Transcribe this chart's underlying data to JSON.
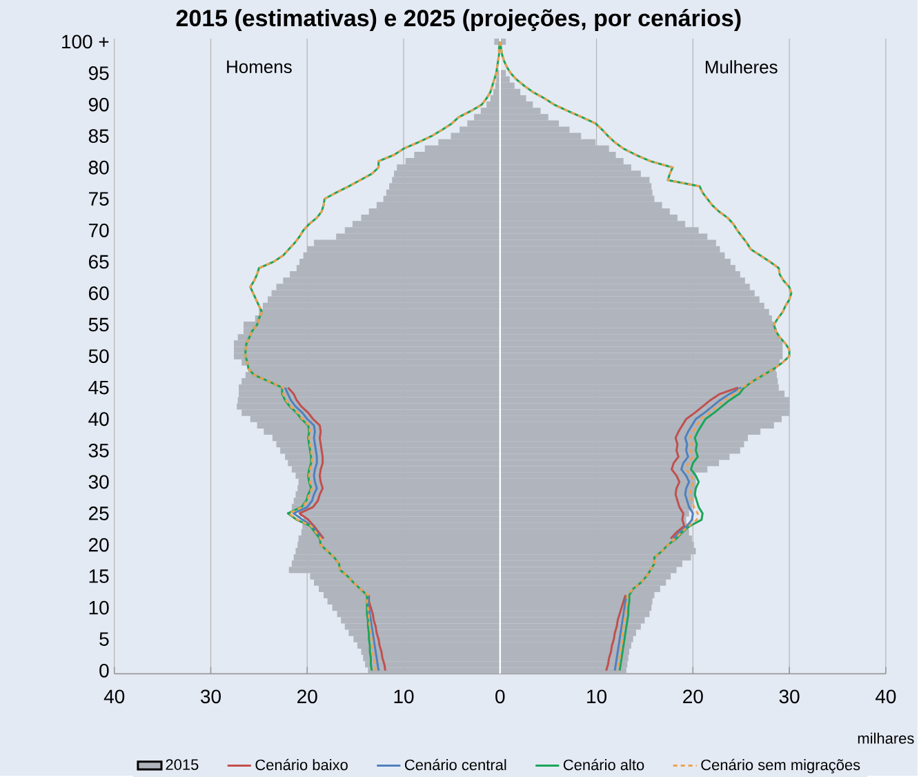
{
  "chart_data": {
    "type": "bar",
    "orientation": "horizontal",
    "stacked": true,
    "title": "2015 (estimativas) e 2025 (projeções, por cenários)",
    "xlabel": "milhares",
    "annotations": [
      "Homens",
      "Mulheres"
    ],
    "categories": [
      "100 +",
      null,
      null,
      null,
      null,
      "95",
      null,
      null,
      null,
      null,
      "90",
      null,
      null,
      null,
      null,
      "85",
      null,
      null,
      null,
      null,
      "80",
      null,
      null,
      null,
      null,
      "75",
      null,
      null,
      null,
      null,
      "70",
      null,
      null,
      null,
      null,
      "65",
      null,
      null,
      null,
      null,
      "60",
      null,
      null,
      null,
      null,
      "55",
      null,
      null,
      null,
      null,
      "50",
      null,
      null,
      null,
      null,
      "45",
      null,
      null,
      null,
      null,
      "40",
      null,
      null,
      null,
      null,
      "35",
      null,
      null,
      null,
      null,
      "30",
      null,
      null,
      null,
      null,
      "25",
      null,
      null,
      null,
      null,
      "20",
      null,
      null,
      null,
      null,
      "15",
      null,
      null,
      null,
      null,
      "10",
      null,
      null,
      null,
      null,
      "5",
      null,
      null,
      null,
      null,
      "0"
    ],
    "xlim": [
      -40,
      40
    ],
    "xticks": [
      {
        "value": -40,
        "label": "40"
      },
      {
        "value": -30,
        "label": "30"
      },
      {
        "value": -20,
        "label": "20"
      },
      {
        "value": -10,
        "label": "10"
      },
      0,
      10,
      20,
      30,
      40
    ],
    "grid": "x",
    "legend": "bottom",
    "ref_lines": [
      {
        "axis": "x",
        "value": 0,
        "color": "#ffffff"
      }
    ],
    "series": [
      {
        "name": "2015",
        "color": "#afb4bd",
        "values": [
          -0.6,
          null,
          null,
          null,
          null,
          -0.3,
          -0.4,
          -0.5,
          -0.7,
          -1.0,
          -1.4,
          -2.0,
          -2.7,
          -3.4,
          -4.2,
          -5.1,
          -6.4,
          -7.8,
          -8.9,
          -9.8,
          -10.7,
          -11.0,
          -11.2,
          -11.5,
          -11.8,
          -12.1,
          -12.8,
          -13.6,
          -14.4,
          -15.3,
          -16.1,
          -17.0,
          -19.3,
          -20.0,
          -20.4,
          -20.8,
          -21.1,
          -21.8,
          -22.5,
          -23.2,
          -23.7,
          -24.1,
          -24.6,
          -25.0,
          -25.4,
          -26.6,
          -26.6,
          -27.2,
          -27.6,
          -27.6,
          -27.6,
          -26.8,
          -26.1,
          -26.4,
          -26.8,
          -27.1,
          -27.1,
          -27.2,
          -27.3,
          -26.8,
          -25.9,
          -25.2,
          -24.5,
          -23.6,
          -23.2,
          -22.8,
          -22.3,
          -22.0,
          -21.6,
          -21.2,
          -20.9,
          -21.0,
          -21.2,
          -21.4,
          -21.6,
          -20.8,
          -20.4,
          -20.5,
          -20.6,
          -20.9,
          -21.0,
          -21.2,
          -21.4,
          -21.6,
          -21.9,
          -19.7,
          -19.3,
          -18.8,
          -18.3,
          -17.9,
          -17.4,
          -16.9,
          -16.5,
          -16.1,
          -15.7,
          -15.2,
          -14.8,
          -14.4,
          -14.2,
          -14.0,
          -13.7
        ]
      },
      {
        "color": "#afb4bd",
        "values": [
          0.6,
          null,
          null,
          null,
          null,
          0.6,
          1.0,
          1.5,
          2.1,
          2.7,
          3.4,
          4.2,
          5.0,
          6.1,
          7.2,
          8.4,
          9.9,
          11.3,
          12.0,
          12.8,
          13.6,
          14.6,
          15.5,
          15.7,
          15.8,
          16.0,
          16.8,
          17.6,
          18.4,
          19.2,
          20.6,
          21.5,
          22.4,
          22.8,
          23.3,
          23.9,
          24.4,
          24.9,
          25.4,
          25.9,
          26.4,
          26.9,
          27.4,
          27.9,
          28.2,
          28.4,
          28.7,
          29.0,
          29.3,
          29.3,
          29.3,
          29.0,
          28.6,
          28.7,
          28.8,
          28.9,
          29.5,
          30.0,
          30.0,
          30.0,
          29.2,
          28.4,
          27.0,
          25.7,
          25.3,
          24.9,
          23.8,
          22.7,
          21.5,
          20.3,
          20.3,
          20.3,
          20.2,
          20.1,
          19.9,
          19.6,
          19.3,
          19.4,
          19.6,
          19.9,
          20.1,
          20.3,
          19.8,
          18.9,
          18.3,
          17.7,
          17.2,
          16.6,
          16.0,
          15.8,
          15.7,
          15.5,
          15.0,
          14.6,
          14.1,
          13.8,
          13.6,
          13.4,
          13.3,
          13.2,
          13.1
        ]
      },
      {
        "name": "Cenário baixo",
        "type": "line",
        "color": "#c0504d",
        "values": [
          null,
          null,
          null,
          null,
          null,
          null,
          null,
          null,
          null,
          null,
          null,
          null,
          null,
          null,
          null,
          null,
          null,
          null,
          null,
          null,
          null,
          null,
          null,
          null,
          null,
          null,
          null,
          null,
          null,
          null,
          null,
          null,
          null,
          null,
          null,
          null,
          null,
          null,
          null,
          null,
          null,
          null,
          null,
          null,
          null,
          null,
          null,
          null,
          null,
          null,
          null,
          null,
          null,
          null,
          null,
          -22.0,
          -21.4,
          -21.1,
          -20.6,
          -19.9,
          -19.4,
          -18.7,
          -18.6,
          -18.7,
          -18.6,
          -18.5,
          -18.4,
          -18.4,
          -18.6,
          -18.7,
          -18.6,
          -18.4,
          -18.7,
          -18.9,
          -19.4,
          -20.8,
          -19.9,
          -19.3,
          -18.8,
          -18.3,
          null,
          null,
          null,
          null,
          null,
          null,
          null,
          null,
          -13.6,
          -13.6,
          -13.4,
          -13.2,
          -13.1,
          -12.9,
          -12.8,
          -12.6,
          -12.5,
          -12.3,
          -12.2,
          -12.0,
          -11.9
        ]
      },
      {
        "name": "Cenário central",
        "type": "line",
        "color": "#4f81bd",
        "values": [
          null,
          null,
          null,
          null,
          null,
          null,
          null,
          null,
          null,
          null,
          null,
          null,
          null,
          null,
          null,
          null,
          null,
          null,
          null,
          null,
          null,
          null,
          null,
          null,
          null,
          null,
          null,
          null,
          null,
          null,
          null,
          null,
          null,
          null,
          null,
          null,
          null,
          null,
          null,
          null,
          null,
          null,
          null,
          null,
          null,
          null,
          null,
          null,
          null,
          null,
          null,
          null,
          null,
          null,
          null,
          -22.3,
          -22.0,
          -21.7,
          -21.2,
          -20.5,
          -20.0,
          -19.3,
          -19.2,
          -19.3,
          -19.2,
          -19.1,
          -19.0,
          -19.0,
          -19.2,
          -19.3,
          -19.2,
          -19.0,
          -19.3,
          -19.5,
          -20.0,
          -21.4,
          -20.5,
          -19.5,
          -19.0,
          -18.5,
          null,
          null,
          null,
          null,
          null,
          null,
          null,
          null,
          -13.7,
          -13.7,
          -13.6,
          -13.5,
          -13.4,
          -13.3,
          -13.2,
          -13.1,
          -13.0,
          -12.9,
          -12.8,
          -12.7,
          -12.6
        ]
      },
      {
        "name": "Cenário alto",
        "type": "line",
        "color": "#1aa55a",
        "values": [
          0,
          -0.1,
          -0.1,
          -0.2,
          -0.3,
          -0.4,
          -0.6,
          -0.8,
          -1.0,
          -1.4,
          -1.9,
          -3.0,
          -4.3,
          -5.0,
          -6.0,
          -7.1,
          -8.5,
          -10.0,
          -11.0,
          -12.6,
          -12.6,
          -13.3,
          -14.5,
          -15.7,
          -17.0,
          -18.2,
          -18.3,
          -18.5,
          -19.0,
          -19.8,
          -20.4,
          -20.8,
          -21.3,
          -21.9,
          -22.5,
          -23.5,
          -25.0,
          -25.2,
          -25.5,
          -25.9,
          -25.6,
          -25.3,
          -25.0,
          -24.7,
          -25.0,
          -25.2,
          -25.7,
          -26.0,
          -26.3,
          -26.4,
          -26.4,
          -26.2,
          -26.1,
          -25.5,
          -24.0,
          -22.6,
          -22.6,
          -22.3,
          -21.8,
          -21.1,
          -20.6,
          -19.9,
          -19.8,
          -19.9,
          -19.8,
          -19.7,
          -19.6,
          -19.6,
          -19.8,
          -19.9,
          -19.8,
          -19.6,
          -19.9,
          -20.1,
          -20.6,
          -22.0,
          -21.1,
          -19.7,
          -19.2,
          -18.7,
          -18.6,
          -17.9,
          -17.2,
          -16.7,
          -16.6,
          -15.8,
          -15.2,
          -14.5,
          -13.8,
          -13.8,
          -13.8,
          -13.8,
          -13.7,
          -13.7,
          -13.6,
          -13.6,
          -13.5,
          -13.5,
          -13.4,
          -13.4,
          -13.3
        ]
      },
      {
        "name": "Cenário sem migrações",
        "type": "line",
        "color": "#f0a050",
        "line_style": "dashed",
        "values": [
          0,
          -0.1,
          -0.1,
          -0.2,
          -0.3,
          -0.4,
          -0.6,
          -0.8,
          -1.0,
          -1.4,
          -1.9,
          -3.0,
          -4.3,
          -5.0,
          -6.0,
          -7.1,
          -8.5,
          -10.0,
          -11.0,
          -12.6,
          -12.6,
          -13.3,
          -14.5,
          -15.7,
          -17.0,
          -18.2,
          -18.3,
          -18.5,
          -19.0,
          -19.8,
          -20.4,
          -20.8,
          -21.3,
          -21.9,
          -22.5,
          -23.5,
          -25.0,
          -25.2,
          -25.5,
          -25.9,
          -25.6,
          -25.3,
          -25.0,
          -24.7,
          -25.0,
          -25.2,
          -25.7,
          -26.0,
          -26.3,
          -26.4,
          -26.4,
          -26.2,
          -26.1,
          -25.5,
          -24.0,
          -22.5,
          -22.5,
          -22.2,
          -21.7,
          -21.0,
          -20.5,
          -19.8,
          -19.7,
          -19.8,
          -19.7,
          -19.6,
          -19.5,
          -19.5,
          -19.7,
          -19.8,
          -19.7,
          -19.5,
          -19.8,
          -20.0,
          -20.5,
          -21.9,
          -21.0,
          -19.6,
          -19.1,
          -18.6,
          -18.6,
          -17.9,
          -17.2,
          -16.7,
          -16.6,
          -15.8,
          -15.2,
          -14.5,
          -13.7,
          -13.8,
          -13.7,
          -13.6,
          -13.6,
          -13.5,
          -13.4,
          -13.3,
          -13.3,
          -13.2,
          -13.1,
          -13.0,
          -12.9
        ]
      },
      {
        "type": "line",
        "color": "#c0504d",
        "values": [
          null,
          null,
          null,
          null,
          null,
          null,
          null,
          null,
          null,
          null,
          null,
          null,
          null,
          null,
          null,
          null,
          null,
          null,
          null,
          null,
          null,
          null,
          null,
          null,
          null,
          null,
          null,
          null,
          null,
          null,
          null,
          null,
          null,
          null,
          null,
          null,
          null,
          null,
          null,
          null,
          null,
          null,
          null,
          null,
          null,
          null,
          null,
          null,
          null,
          null,
          null,
          null,
          null,
          null,
          null,
          24.7,
          22.8,
          21.8,
          21.0,
          20.2,
          19.3,
          18.9,
          18.5,
          18.2,
          18.4,
          18.3,
          18.5,
          18.0,
          17.8,
          18.3,
          18.6,
          18.3,
          18.2,
          18.4,
          18.6,
          19.0,
          18.9,
          19.1,
          18.3,
          17.7,
          null,
          null,
          null,
          null,
          null,
          null,
          null,
          null,
          13.0,
          12.8,
          12.6,
          12.4,
          12.2,
          12.1,
          11.9,
          11.8,
          11.6,
          11.5,
          11.3,
          11.2,
          11.0
        ]
      },
      {
        "type": "line",
        "color": "#4f81bd",
        "values": [
          null,
          null,
          null,
          null,
          null,
          null,
          null,
          null,
          null,
          null,
          null,
          null,
          null,
          null,
          null,
          null,
          null,
          null,
          null,
          null,
          null,
          null,
          null,
          null,
          null,
          null,
          null,
          null,
          null,
          null,
          null,
          null,
          null,
          null,
          null,
          null,
          null,
          null,
          null,
          null,
          null,
          null,
          null,
          null,
          null,
          null,
          null,
          null,
          null,
          null,
          null,
          null,
          null,
          null,
          null,
          25.0,
          23.8,
          22.8,
          22.0,
          21.2,
          20.3,
          19.9,
          19.5,
          19.2,
          19.4,
          19.3,
          19.5,
          19.0,
          18.8,
          19.3,
          19.6,
          19.3,
          19.2,
          19.4,
          19.6,
          20.0,
          19.9,
          19.4,
          18.6,
          18.0,
          null,
          null,
          null,
          null,
          null,
          null,
          null,
          null,
          13.1,
          13.0,
          12.9,
          12.8,
          12.7,
          12.6,
          12.5,
          12.4,
          12.3,
          12.2,
          12.1,
          12.0,
          11.9
        ]
      },
      {
        "type": "line",
        "color": "#1aa55a",
        "values": [
          0,
          0.1,
          0.2,
          0.4,
          0.7,
          1.1,
          1.7,
          2.5,
          3.4,
          4.6,
          5.6,
          7.0,
          8.5,
          9.9,
          10.6,
          11.2,
          11.9,
          12.8,
          14.1,
          15.6,
          17.9,
          17.6,
          17.4,
          20.7,
          21.0,
          21.5,
          22.0,
          22.7,
          23.6,
          24.2,
          24.6,
          25.1,
          25.6,
          26.0,
          27.0,
          28.0,
          28.9,
          29.0,
          29.4,
          30.0,
          30.2,
          30.0,
          29.6,
          29.3,
          28.8,
          28.4,
          28.6,
          29.0,
          29.6,
          30.0,
          30.0,
          29.3,
          28.4,
          27.3,
          26.2,
          25.3,
          24.8,
          23.8,
          23.0,
          22.2,
          21.3,
          20.9,
          20.5,
          20.2,
          20.4,
          20.3,
          20.5,
          20.0,
          19.8,
          20.3,
          20.6,
          20.3,
          20.2,
          20.4,
          20.6,
          21.0,
          20.9,
          19.7,
          18.9,
          18.3,
          17.4,
          16.8,
          16.0,
          16.0,
          15.6,
          15.2,
          14.6,
          13.8,
          13.4,
          13.4,
          13.3,
          13.3,
          13.2,
          13.1,
          13.0,
          12.9,
          12.8,
          12.7,
          12.6,
          12.5,
          12.4
        ]
      },
      {
        "type": "line",
        "color": "#f0a050",
        "line_style": "dashed",
        "values": [
          0,
          0.1,
          0.2,
          0.4,
          0.7,
          1.1,
          1.7,
          2.5,
          3.4,
          4.6,
          5.6,
          7.0,
          8.5,
          9.9,
          10.6,
          11.2,
          11.9,
          12.8,
          14.1,
          15.6,
          17.9,
          17.6,
          17.4,
          20.7,
          21.0,
          21.5,
          22.0,
          22.7,
          23.6,
          24.2,
          24.6,
          25.1,
          25.6,
          26.0,
          27.0,
          28.0,
          28.9,
          29.0,
          29.4,
          30.0,
          30.2,
          30.0,
          29.6,
          29.3,
          28.8,
          28.4,
          28.6,
          29.0,
          29.6,
          30.0,
          30.0,
          29.3,
          28.4,
          27.3,
          26.2,
          25.1,
          24.3,
          23.3,
          22.5,
          21.7,
          20.8,
          20.4,
          20.0,
          19.7,
          19.9,
          19.8,
          20.0,
          19.5,
          19.3,
          19.8,
          20.1,
          19.8,
          19.7,
          19.9,
          20.1,
          20.5,
          20.4,
          19.6,
          18.8,
          18.2,
          17.4,
          16.8,
          16.0,
          16.0,
          15.6,
          15.2,
          14.6,
          13.8,
          13.2,
          13.2,
          13.1,
          13.0,
          12.9,
          12.8,
          12.7,
          12.7,
          12.6,
          12.5,
          12.4,
          12.3,
          12.2
        ]
      }
    ]
  }
}
